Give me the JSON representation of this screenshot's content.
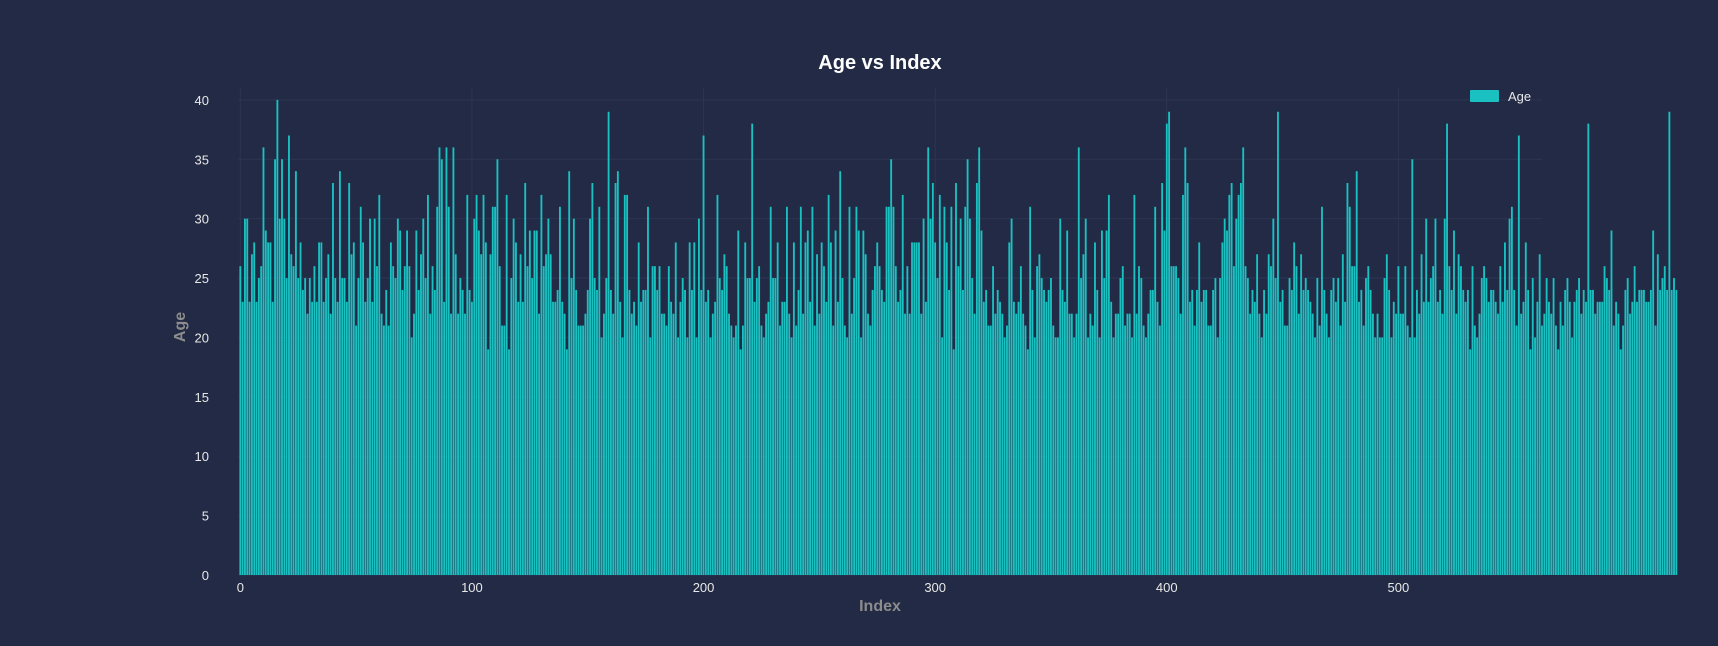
{
  "chart_data": {
    "type": "bar",
    "title": "Age vs Index",
    "xlabel": "Index",
    "ylabel": "Age",
    "xlim": [
      -1,
      562
    ],
    "ylim": [
      0,
      41
    ],
    "x_ticks": [
      0,
      100,
      200,
      300,
      400,
      500
    ],
    "y_ticks": [
      0,
      5,
      10,
      15,
      20,
      25,
      30,
      35,
      40
    ],
    "grid": true,
    "legend_position": "top-right",
    "bar_color": "#19c1c1",
    "background_color": "#222a45",
    "series": [
      {
        "name": "Age",
        "x_start": 0,
        "values": [
          26,
          23,
          30,
          30,
          23,
          27,
          28,
          23,
          25,
          26,
          36,
          29,
          28,
          28,
          23,
          35,
          40,
          30,
          35,
          30,
          25,
          37,
          27,
          26,
          34,
          25,
          28,
          24,
          25,
          22,
          25,
          23,
          26,
          23,
          28,
          28,
          23,
          25,
          27,
          22,
          33,
          25,
          23,
          34,
          25,
          25,
          23,
          33,
          27,
          28,
          21,
          25,
          31,
          28,
          23,
          25,
          30,
          23,
          30,
          26,
          32,
          22,
          21,
          24,
          21,
          28,
          26,
          25,
          30,
          29,
          24,
          26,
          29,
          26,
          20,
          22,
          29,
          24,
          27,
          30,
          25,
          32,
          22,
          26,
          24,
          31,
          36,
          35,
          23,
          36,
          31,
          22,
          36,
          27,
          22,
          25,
          24,
          22,
          32,
          24,
          23,
          30,
          32,
          29,
          27,
          32,
          28,
          19,
          27,
          31,
          31,
          35,
          26,
          21,
          21,
          32,
          19,
          25,
          30,
          28,
          23,
          27,
          23,
          33,
          26,
          29,
          25,
          29,
          29,
          22,
          32,
          26,
          27,
          30,
          27,
          23,
          23,
          24,
          31,
          23,
          22,
          19,
          34,
          25,
          30,
          24,
          21,
          21,
          21,
          22,
          24,
          30,
          33,
          25,
          24,
          31,
          20,
          22,
          25,
          39,
          24,
          22,
          33,
          34,
          23,
          20,
          32,
          32,
          24,
          22,
          23,
          21,
          28,
          23,
          24,
          24,
          31,
          20,
          26,
          26,
          24,
          26,
          22,
          22,
          21,
          26,
          23,
          22,
          28,
          20,
          23,
          25,
          24,
          20,
          28,
          24,
          28,
          20,
          30,
          24,
          37,
          23,
          24,
          20,
          22,
          23,
          32,
          25,
          24,
          27,
          26,
          22,
          21,
          20,
          21,
          29,
          19,
          21,
          28,
          25,
          25,
          38,
          23,
          25,
          26,
          21,
          20,
          22,
          23,
          31,
          25,
          25,
          28,
          21,
          23,
          23,
          31,
          22,
          20,
          28,
          21,
          24,
          31,
          22,
          28,
          29,
          23,
          31,
          21,
          27,
          22,
          28,
          26,
          23,
          32,
          28,
          21,
          29,
          23,
          34,
          25,
          21,
          20,
          31,
          22,
          25,
          31,
          29,
          20,
          29,
          27,
          22,
          21,
          24,
          26,
          28,
          26,
          24,
          23,
          31,
          31,
          35,
          31,
          26,
          23,
          24,
          32,
          22,
          26,
          22,
          28,
          28,
          28,
          28,
          22,
          30,
          23,
          36,
          30,
          33,
          28,
          25,
          32,
          20,
          31,
          28,
          24,
          31,
          19,
          33,
          26,
          30,
          24,
          31,
          35,
          30,
          25,
          22,
          33,
          36,
          29,
          23,
          24,
          21,
          21,
          26,
          22,
          24,
          23,
          22,
          20,
          21,
          28,
          30,
          23,
          22,
          23,
          26,
          22,
          21,
          19,
          31,
          24,
          20,
          26,
          27,
          25,
          24,
          23,
          24,
          25,
          21,
          20,
          20,
          30,
          24,
          23,
          29,
          22,
          22,
          20,
          22,
          36,
          25,
          27,
          30,
          20,
          22,
          21,
          28,
          24,
          20,
          29,
          25,
          29,
          32,
          23,
          20,
          22,
          22,
          25,
          26,
          21,
          22,
          22,
          20,
          32,
          22,
          26,
          25,
          21,
          20,
          22,
          24,
          24,
          31,
          23,
          21,
          33,
          29,
          38,
          39,
          26,
          26,
          26,
          25,
          22,
          32,
          36,
          33,
          23,
          24,
          21,
          24,
          28,
          23,
          24,
          24,
          21,
          21,
          24,
          25,
          20,
          25,
          28,
          30,
          29,
          32,
          33,
          26,
          30,
          32,
          33,
          36,
          26,
          25,
          22,
          24,
          23,
          27,
          22,
          20,
          24,
          22,
          27,
          26,
          30,
          25,
          39,
          23,
          24,
          21,
          21,
          25,
          24,
          28,
          26,
          22,
          27,
          24,
          25,
          24,
          23,
          22,
          20,
          25,
          21,
          31,
          24,
          22,
          20,
          24,
          25,
          23,
          25,
          21,
          27,
          23,
          33,
          31,
          26,
          26,
          34,
          23,
          24,
          21,
          25,
          26,
          24,
          22,
          20,
          22,
          20,
          20,
          25,
          27,
          24,
          20,
          23,
          22,
          26,
          22,
          22,
          26,
          21,
          20,
          35,
          20,
          24,
          22,
          27,
          23,
          30,
          23,
          25,
          26,
          30,
          23,
          24,
          22,
          30,
          38,
          26,
          24,
          29,
          22,
          27,
          26,
          24,
          23,
          24,
          19,
          26,
          21,
          20,
          22,
          25,
          26,
          25,
          23,
          24,
          24,
          23,
          22,
          26,
          23,
          28,
          24,
          30,
          31,
          24,
          21,
          37,
          22,
          23,
          28,
          24,
          19,
          25,
          20,
          23,
          27,
          21,
          22,
          25,
          23,
          22,
          25,
          21,
          19,
          23,
          21,
          24,
          25,
          23,
          20,
          23,
          24,
          25,
          22,
          24,
          23,
          38,
          24,
          24,
          22,
          23,
          23,
          23,
          26,
          25,
          24,
          29,
          21,
          23,
          22,
          19,
          21,
          24,
          25,
          22,
          23,
          26,
          23,
          24,
          24,
          24,
          23,
          23,
          24,
          29,
          21,
          27,
          24,
          25,
          26,
          24,
          39,
          24,
          25,
          24
        ]
      }
    ]
  }
}
